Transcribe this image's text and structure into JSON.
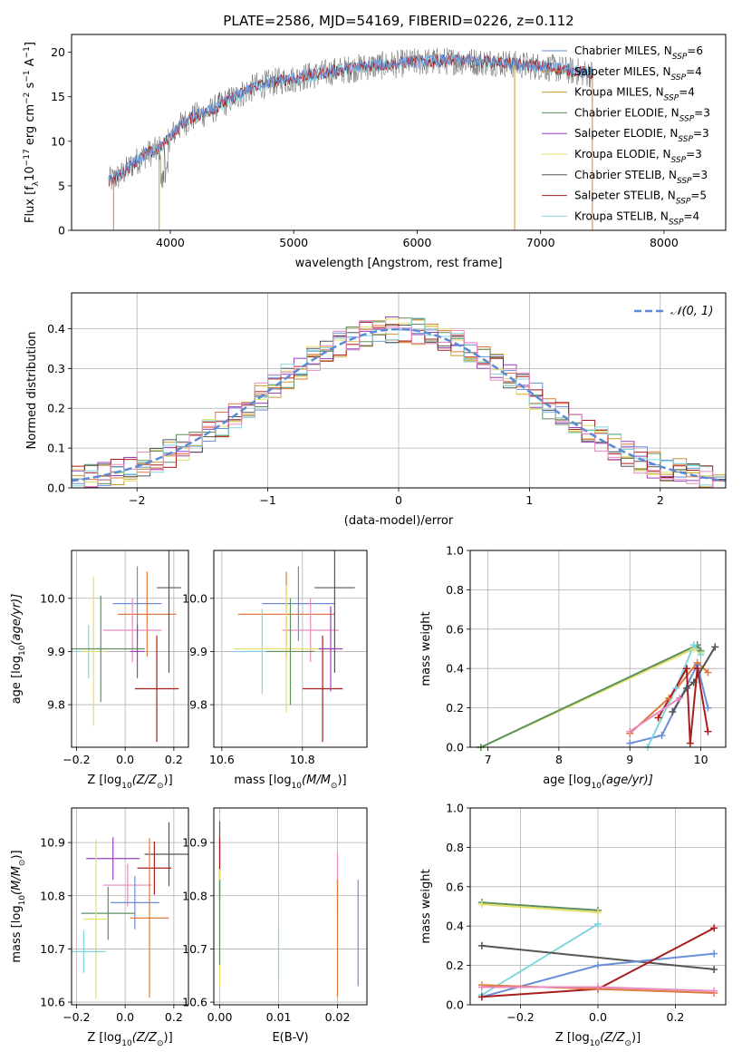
{
  "title": "PLATE=2586, MJD=54169, FIBERID=0226, z=0.112",
  "colors": {
    "Chabrier MILES": "#6a8fd8",
    "Salpeter MILES": "#e07a3a",
    "Kroupa MILES": "#c99a2e",
    "Chabrier ELODIE": "#5f8f5f",
    "Salpeter ELODIE": "#9a3fbf",
    "Kroupa ELODIE": "#e4e06a",
    "Chabrier STELIB": "#555555",
    "Salpeter STELIB": "#a81e1e",
    "Kroupa STELIB": "#7fd6dc",
    "pink": "#e88ac0",
    "normal": "#5a8ad6"
  },
  "chart_data": [
    {
      "type": "line",
      "title": "PLATE=2586, MJD=54169, FIBERID=0226, z=0.112",
      "xlabel": "wavelength [Angstrom, rest frame]",
      "ylabel": "Flux [f",
      "ylabel_sym": "λ",
      "ylabel_rest": "10",
      "ylabel_exp": "−17",
      "ylabel_tail": " erg cm",
      "ylabel_exp2": "−2",
      "ylabel_tail2": " s",
      "ylabel_exp3": "−1",
      "ylabel_tail3": " A",
      "ylabel_exp4": "−1",
      "ylabel_end": "]",
      "xlim": [
        3200,
        8500
      ],
      "ylim": [
        0,
        22
      ],
      "xticks": [
        4000,
        5000,
        6000,
        7000,
        8000
      ],
      "yticks": [
        0,
        5,
        10,
        15,
        20
      ],
      "spectrum_anchors": {
        "x": [
          3500,
          3600,
          3700,
          3800,
          3900,
          4000,
          4100,
          4200,
          4300,
          4400,
          4500,
          4600,
          4700,
          4800,
          4900,
          5000,
          5100,
          5200,
          5300,
          5400,
          5500,
          5600,
          5700,
          5800,
          5900,
          6000,
          6100,
          6200,
          6300,
          6400,
          6500,
          6600,
          6700,
          6800,
          6900,
          7000,
          7100,
          7200,
          7300,
          7400
        ],
        "y": [
          5.5,
          6.2,
          7.5,
          8.5,
          9.0,
          10.5,
          12.0,
          12.8,
          13.2,
          14.0,
          14.8,
          15.5,
          16.2,
          16.5,
          16.8,
          17.0,
          17.3,
          17.5,
          17.8,
          18.0,
          18.2,
          18.4,
          18.5,
          18.6,
          18.8,
          18.9,
          18.9,
          19.0,
          19.0,
          19.0,
          18.9,
          18.9,
          18.8,
          18.6,
          18.5,
          18.4,
          18.2,
          18.0,
          17.8,
          17.6
        ]
      },
      "legend": [
        {
          "label": "Chabrier MILES, N",
          "sub": "SSP",
          "n": "=6"
        },
        {
          "label": "Salpeter MILES, N",
          "sub": "SSP",
          "n": "=4"
        },
        {
          "label": "Kroupa MILES, N",
          "sub": "SSP",
          "n": "=4"
        },
        {
          "label": "Chabrier ELODIE, N",
          "sub": "SSP",
          "n": "=3"
        },
        {
          "label": "Salpeter ELODIE, N",
          "sub": "SSP",
          "n": "=3"
        },
        {
          "label": "Kroupa ELODIE, N",
          "sub": "SSP",
          "n": "=3"
        },
        {
          "label": "Chabrier STELIB, N",
          "sub": "SSP",
          "n": "=3"
        },
        {
          "label": "Salpeter STELIB, N",
          "sub": "SSP",
          "n": "=5"
        },
        {
          "label": "Kroupa STELIB, N",
          "sub": "SSP",
          "n": "=4"
        }
      ]
    },
    {
      "type": "histogram",
      "xlabel": "(data-model)/error",
      "ylabel": "Normed distribution",
      "xlim": [
        -2.5,
        2.5
      ],
      "ylim": [
        0,
        0.49
      ],
      "xticks": [
        -2,
        -1,
        0,
        1,
        2
      ],
      "xticklabels": [
        "−2",
        "−1",
        "0",
        "1",
        "2"
      ],
      "yticks": [
        0.0,
        0.1,
        0.2,
        0.3,
        0.4
      ],
      "yticklabels": [
        "0.0",
        "0.1",
        "0.2",
        "0.3",
        "0.4"
      ],
      "bin_width": 0.1,
      "legend": "𝒩(0, 1)"
    },
    {
      "type": "scatter",
      "id": "age_vs_Z",
      "xlabel": "Z [log",
      "xlabel_sub": "10",
      "xlabel_rest": "(Z/Z",
      "xlabel_sun": "⊙",
      "xlabel_end": ")]",
      "ylabel": "age  [log",
      "ylabel_sub": "10",
      "ylabel_rest": "(age/yr)]",
      "xlim": [
        -0.22,
        0.26
      ],
      "ylim": [
        9.72,
        10.09
      ],
      "xticks": [
        -0.2,
        0.0,
        0.2
      ],
      "xticklabels": [
        "−0.2",
        "0.0",
        "0.2"
      ],
      "yticks": [
        9.8,
        9.9,
        10.0
      ],
      "yticklabels": [
        "9.8",
        "9.9",
        "10.0"
      ],
      "points": [
        {
          "x": 0.05,
          "y": 9.99,
          "xerr": 0.1,
          "yerr": 0.07,
          "c": "Chabrier MILES"
        },
        {
          "x": 0.09,
          "y": 9.97,
          "xerr": 0.12,
          "yerr": 0.08,
          "c": "Salpeter MILES"
        },
        {
          "x": 0.03,
          "y": 9.94,
          "xerr": 0.12,
          "yerr": 0.06,
          "c": "pink"
        },
        {
          "x": 0.18,
          "y": 10.02,
          "xerr": 0.05,
          "yerr": 0.16,
          "c": "Chabrier STELIB"
        },
        {
          "x": 0.13,
          "y": 9.83,
          "xerr": 0.09,
          "yerr": 0.1,
          "c": "Salpeter STELIB"
        },
        {
          "x": -0.15,
          "y": 9.9,
          "xerr": 0.06,
          "yerr": 0.05,
          "c": "Kroupa STELIB"
        },
        {
          "x": -0.13,
          "y": 9.9,
          "xerr": 0.05,
          "yerr": 0.14,
          "c": "Kroupa ELODIE"
        },
        {
          "x": -0.1,
          "y": 9.905,
          "xerr": 0.18,
          "yerr": 0.1,
          "c": "Chabrier ELODIE"
        },
        {
          "x": 0.05,
          "y": 9.9,
          "xerr": 0.03,
          "yerr": 0.05,
          "c": "Salpeter ELODIE"
        }
      ]
    },
    {
      "type": "scatter",
      "id": "age_vs_mass",
      "xlabel": "mass [log",
      "xlabel_sub": "10",
      "xlabel_rest": "(M/M",
      "xlabel_sun": "⊙",
      "xlabel_end": ")]",
      "xlim": [
        10.58,
        10.96
      ],
      "ylim": [
        9.72,
        10.09
      ],
      "xticks": [
        10.6,
        10.8
      ],
      "xticklabels": [
        "10.6",
        "10.8"
      ],
      "yticks": [
        9.8,
        9.9,
        10.0
      ],
      "yticklabels": [
        "9.8",
        "9.9",
        "10.0"
      ],
      "points": [
        {
          "x": 10.79,
          "y": 9.99,
          "xerr": 0.09,
          "yerr": 0.07,
          "c": "Chabrier MILES"
        },
        {
          "x": 10.76,
          "y": 9.97,
          "xerr": 0.12,
          "yerr": 0.08,
          "c": "Salpeter MILES"
        },
        {
          "x": 10.82,
          "y": 9.94,
          "xerr": 0.07,
          "yerr": 0.06,
          "c": "pink"
        },
        {
          "x": 10.88,
          "y": 10.02,
          "xerr": 0.05,
          "yerr": 0.16,
          "c": "Chabrier STELIB"
        },
        {
          "x": 10.85,
          "y": 9.83,
          "xerr": 0.05,
          "yerr": 0.1,
          "c": "Salpeter STELIB"
        },
        {
          "x": 10.7,
          "y": 9.9,
          "xerr": 0.07,
          "yerr": 0.08,
          "c": "Kroupa STELIB"
        },
        {
          "x": 10.76,
          "y": 9.905,
          "xerr": 0.13,
          "yerr": 0.12,
          "c": "Kroupa ELODIE"
        },
        {
          "x": 10.77,
          "y": 9.9,
          "xerr": 0.06,
          "yerr": 0.1,
          "c": "Chabrier ELODIE"
        },
        {
          "x": 10.87,
          "y": 9.905,
          "xerr": 0.03,
          "yerr": 0.08,
          "c": "Salpeter ELODIE"
        }
      ]
    },
    {
      "type": "line",
      "id": "mw_vs_age",
      "xlabel": "age  [log",
      "xlabel_sub": "10",
      "xlabel_rest": "(age/yr)]",
      "ylabel": "mass weight",
      "xlim": [
        6.75,
        10.35
      ],
      "ylim": [
        0,
        1
      ],
      "xticks": [
        7,
        8,
        9,
        10
      ],
      "xticklabels": [
        "7",
        "8",
        "9",
        "10"
      ],
      "yticks": [
        0,
        0.2,
        0.4,
        0.6,
        0.8,
        1.0
      ],
      "yticklabels": [
        "0.0",
        "0.2",
        "0.4",
        "0.6",
        "0.8",
        "1.0"
      ],
      "series": [
        {
          "c": "Kroupa ELODIE",
          "x": [
            6.9,
            9.9,
            10.0
          ],
          "y": [
            0.0,
            0.5,
            0.48
          ]
        },
        {
          "c": "Chabrier ELODIE",
          "x": [
            6.9,
            9.95,
            10.0
          ],
          "y": [
            0.0,
            0.52,
            0.49
          ]
        },
        {
          "c": "Chabrier MILES",
          "x": [
            9.0,
            9.45,
            9.95,
            10.1
          ],
          "y": [
            0.02,
            0.06,
            0.42,
            0.2
          ]
        },
        {
          "c": "Salpeter MILES",
          "x": [
            9.0,
            9.55,
            9.95,
            10.1
          ],
          "y": [
            0.07,
            0.25,
            0.43,
            0.38
          ]
        },
        {
          "c": "Kroupa STELIB",
          "x": [
            9.25,
            9.65,
            9.9,
            10.0
          ],
          "y": [
            0.0,
            0.3,
            0.52,
            0.47
          ]
        },
        {
          "c": "Chabrier STELIB",
          "x": [
            9.6,
            9.8,
            9.9,
            10.2
          ],
          "y": [
            0.18,
            0.3,
            0.33,
            0.51
          ]
        },
        {
          "c": "Salpeter STELIB",
          "x": [
            9.4,
            9.8,
            9.85,
            9.95,
            10.1
          ],
          "y": [
            0.15,
            0.4,
            0.02,
            0.4,
            0.08
          ]
        },
        {
          "c": "pink",
          "x": [
            9.0,
            9.7
          ],
          "y": [
            0.08,
            0.25
          ]
        }
      ]
    },
    {
      "type": "scatter",
      "id": "mass_vs_Z",
      "xlabel": "Z [log",
      "xlabel_sub": "10",
      "xlabel_rest": "(Z/Z",
      "xlabel_sun": "⊙",
      "xlabel_end": ")]",
      "ylabel": "mass [log",
      "ylabel_sub": "10",
      "ylabel_rest": "(M/M",
      "ylabel_sun": "⊙",
      "ylabel_end": ")]",
      "xlim": [
        -0.22,
        0.26
      ],
      "ylim": [
        10.595,
        10.965
      ],
      "xticks": [
        -0.2,
        0.0,
        0.2
      ],
      "xticklabels": [
        "−0.2",
        "0.0",
        "0.2"
      ],
      "yticks": [
        10.6,
        10.7,
        10.8,
        10.9
      ],
      "yticklabels": [
        "10.6",
        "10.7",
        "10.8",
        "10.9"
      ],
      "points": [
        {
          "x": -0.05,
          "y": 10.87,
          "xerr": 0.11,
          "yerr": 0.04,
          "c": "Salpeter ELODIE"
        },
        {
          "x": 0.18,
          "y": 10.878,
          "xerr": 0.1,
          "yerr": 0.06,
          "c": "Chabrier STELIB"
        },
        {
          "x": 0.12,
          "y": 10.852,
          "xerr": 0.07,
          "yerr": 0.05,
          "c": "Salpeter STELIB"
        },
        {
          "x": 0.01,
          "y": 10.82,
          "xerr": 0.1,
          "yerr": 0.04,
          "c": "pink"
        },
        {
          "x": 0.04,
          "y": 10.787,
          "xerr": 0.1,
          "yerr": 0.05,
          "c": "Chabrier MILES"
        },
        {
          "x": -0.07,
          "y": 10.767,
          "xerr": 0.11,
          "yerr": 0.05,
          "c": "Chabrier ELODIE"
        },
        {
          "x": -0.12,
          "y": 10.756,
          "xerr": 0.05,
          "yerr": 0.15,
          "c": "Kroupa ELODIE"
        },
        {
          "x": 0.1,
          "y": 10.758,
          "xerr": 0.08,
          "yerr": 0.15,
          "c": "Salpeter MILES"
        },
        {
          "x": -0.17,
          "y": 10.695,
          "xerr": 0.09,
          "yerr": 0.04,
          "c": "Kroupa STELIB"
        }
      ]
    },
    {
      "type": "scatter",
      "id": "mass_vs_ebv",
      "xlabel": "E(B-V)",
      "xlim": [
        -0.001,
        0.025
      ],
      "ylim": [
        10.595,
        10.965
      ],
      "xticks": [
        0.0,
        0.01,
        0.02
      ],
      "xticklabels": [
        "0.00",
        "0.01",
        "0.02"
      ],
      "yticks": [
        10.6,
        10.7,
        10.8,
        10.9
      ],
      "yticklabels": [
        "10.6",
        "10.7",
        "10.8",
        "10.9"
      ],
      "points": [
        {
          "x": 0.0,
          "y": 10.87,
          "yerr": 0.07,
          "c": "Chabrier STELIB"
        },
        {
          "x": 0.0,
          "y": 10.85,
          "yerr": 0.06,
          "c": "Salpeter STELIB"
        },
        {
          "x": 0.0,
          "y": 10.74,
          "yerr": 0.11,
          "c": "Kroupa ELODIE"
        },
        {
          "x": 0.0,
          "y": 10.75,
          "yerr": 0.08,
          "c": "Chabrier ELODIE"
        },
        {
          "x": 0.01,
          "y": 10.69,
          "yerr": 0.05,
          "c": "Kroupa STELIB"
        },
        {
          "x": 0.02,
          "y": 10.82,
          "yerr": 0.06,
          "c": "pink"
        },
        {
          "x": 0.02,
          "y": 10.72,
          "yerr": 0.11,
          "c": "Salpeter MILES"
        },
        {
          "x": 0.0235,
          "y": 10.73,
          "yerr": 0.1,
          "c": "Chabrier MILES"
        }
      ]
    },
    {
      "type": "line",
      "id": "mw_vs_Z",
      "xlabel": "Z [log",
      "xlabel_sub": "10",
      "xlabel_rest": "(Z/Z",
      "xlabel_sun": "⊙",
      "xlabel_end": ")]",
      "ylabel": "mass weight",
      "xlim": [
        -0.33,
        0.33
      ],
      "ylim": [
        0,
        1
      ],
      "xticks": [
        -0.2,
        0.0,
        0.2
      ],
      "xticklabels": [
        "−0.2",
        "0.0",
        "0.2"
      ],
      "yticks": [
        0,
        0.2,
        0.4,
        0.6,
        0.8,
        1.0
      ],
      "yticklabels": [
        "0.0",
        "0.2",
        "0.4",
        "0.6",
        "0.8",
        "1.0"
      ],
      "series": [
        {
          "c": "Chabrier ELODIE",
          "x": [
            -0.3,
            0.0
          ],
          "y": [
            0.52,
            0.48
          ]
        },
        {
          "c": "Kroupa ELODIE",
          "x": [
            -0.3,
            0.0
          ],
          "y": [
            0.51,
            0.47
          ]
        },
        {
          "c": "Kroupa STELIB",
          "x": [
            -0.3,
            0.0
          ],
          "y": [
            0.05,
            0.41
          ]
        },
        {
          "c": "Chabrier STELIB",
          "x": [
            -0.3,
            0.3
          ],
          "y": [
            0.3,
            0.18
          ]
        },
        {
          "c": "Chabrier MILES",
          "x": [
            -0.3,
            0.0,
            0.3
          ],
          "y": [
            0.04,
            0.2,
            0.26
          ]
        },
        {
          "c": "Salpeter STELIB",
          "x": [
            -0.3,
            0.0,
            0.3
          ],
          "y": [
            0.04,
            0.08,
            0.39
          ]
        },
        {
          "c": "Salpeter MILES",
          "x": [
            -0.3,
            0.0,
            0.3
          ],
          "y": [
            0.1,
            0.08,
            0.06
          ]
        },
        {
          "c": "pink",
          "x": [
            -0.3,
            0.0,
            0.3
          ],
          "y": [
            0.09,
            0.09,
            0.07
          ]
        }
      ]
    }
  ]
}
